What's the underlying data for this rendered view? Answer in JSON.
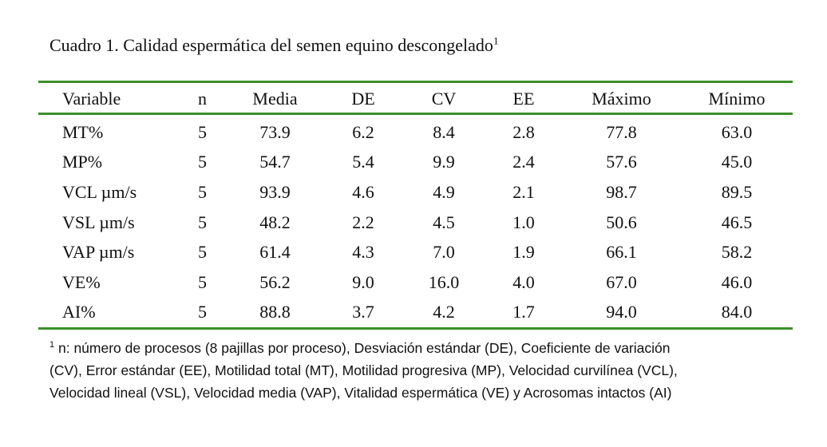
{
  "caption": {
    "text": "Cuadro 1.  Calidad espermática del semen equino descongelado",
    "marker": "1"
  },
  "table": {
    "headers": [
      "Variable",
      "n",
      "Media",
      "DE",
      "CV",
      "EE",
      "Máximo",
      "Mínimo"
    ],
    "rows": [
      [
        "MT%",
        "5",
        "73.9",
        "6.2",
        "8.4",
        "2.8",
        "77.8",
        "63.0"
      ],
      [
        "MP%",
        "5",
        "54.7",
        "5.4",
        "9.9",
        "2.4",
        "57.6",
        "45.0"
      ],
      [
        "VCL µm/s",
        "5",
        "93.9",
        "4.6",
        "4.9",
        "2.1",
        "98.7",
        "89.5"
      ],
      [
        "VSL µm/s",
        "5",
        "48.2",
        "2.2",
        "4.5",
        "1.0",
        "50.6",
        "46.5"
      ],
      [
        "VAP µm/s",
        "5",
        "61.4",
        "4.3",
        "7.0",
        "1.9",
        "66.1",
        "58.2"
      ],
      [
        "VE%",
        "5",
        "56.2",
        "9.0",
        "16.0",
        "4.0",
        "67.0",
        "46.0"
      ],
      [
        "AI%",
        "5",
        "88.8",
        "3.7",
        "4.2",
        "1.7",
        "94.0",
        "84.0"
      ]
    ]
  },
  "footnote": {
    "marker": "1",
    "lines": [
      " n: número de procesos (8 pajillas por proceso), Desviación estándar (DE), Coeficiente de variación",
      "(CV), Error estándar (EE), Motilidad total (MT), Motilidad progresiva (MP), Velocidad curvilínea (VCL),",
      "Velocidad lineal (VSL), Velocidad media (VAP), Vitalidad espermática (VE) y Acrosomas intactos (AI)"
    ]
  },
  "colors": {
    "rule": "#3b8f2a",
    "text": "#111111",
    "background": "#ffffff"
  }
}
